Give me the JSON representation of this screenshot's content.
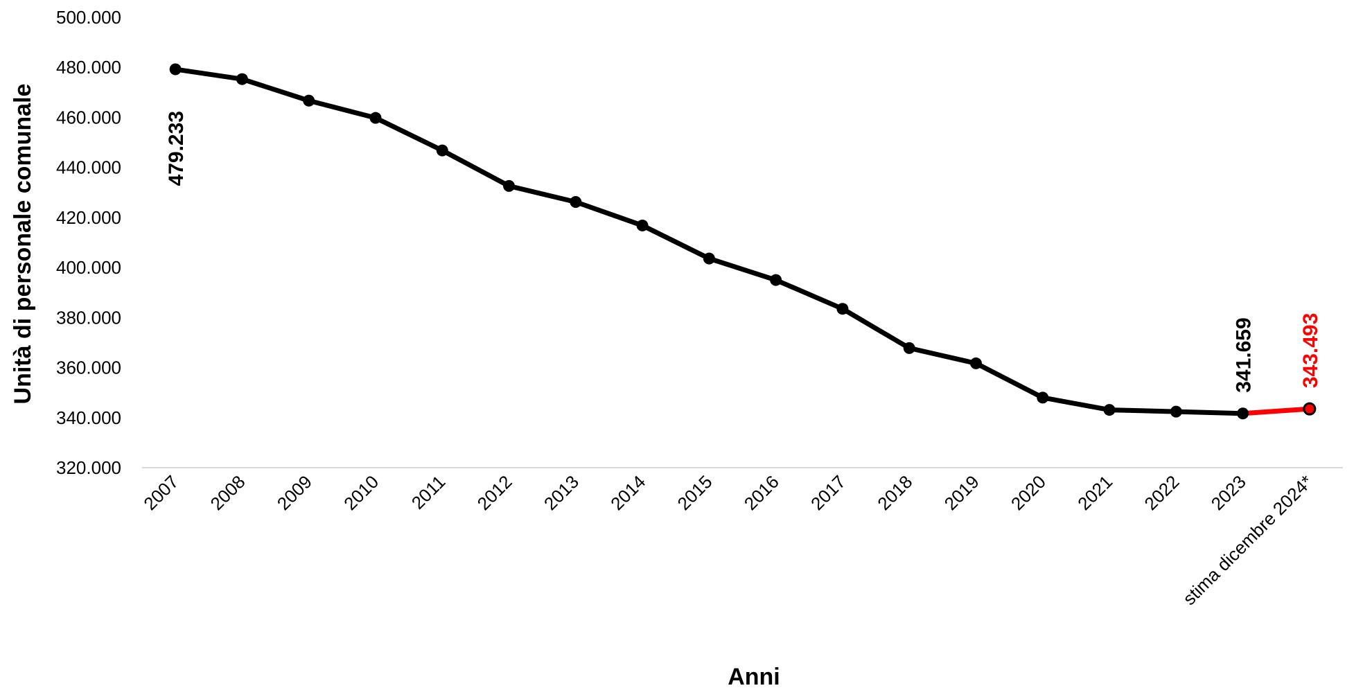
{
  "chart_data": {
    "type": "line",
    "title": "",
    "xlabel": "Anni",
    "ylabel": "Unità di personale comunale",
    "ylim": [
      320000,
      500000
    ],
    "ytick_step": 20000,
    "ytick_labels": [
      "320.000",
      "340.000",
      "360.000",
      "380.000",
      "400.000",
      "420.000",
      "440.000",
      "460.000",
      "480.000",
      "500.000"
    ],
    "grid": false,
    "legend": "none",
    "categories": [
      "2007",
      "2008",
      "2009",
      "2010",
      "2011",
      "2012",
      "2013",
      "2014",
      "2015",
      "2016",
      "2017",
      "2018",
      "2019",
      "2020",
      "2021",
      "2022",
      "2023",
      "stima dicembre 2024*"
    ],
    "series": [
      {
        "color": "#000000",
        "values": [
          479233,
          475300,
          466700,
          459800,
          446800,
          432600,
          426200,
          416800,
          403600,
          395000,
          383500,
          367800,
          361700,
          348000,
          343100,
          342400,
          341659,
          null
        ]
      },
      {
        "color": "#ff0000",
        "values": [
          null,
          null,
          null,
          null,
          null,
          null,
          null,
          null,
          null,
          null,
          null,
          null,
          null,
          null,
          null,
          null,
          341659,
          343493
        ]
      }
    ],
    "data_labels": [
      {
        "category_index": 0,
        "text": "479.233",
        "color": "#000000",
        "position": "below"
      },
      {
        "category_index": 16,
        "text": "341.659",
        "color": "#000000",
        "position": "above"
      },
      {
        "category_index": 17,
        "text": "343.493",
        "color": "#ff0000",
        "position": "above"
      }
    ],
    "axis_color": "#d9d9d9"
  }
}
